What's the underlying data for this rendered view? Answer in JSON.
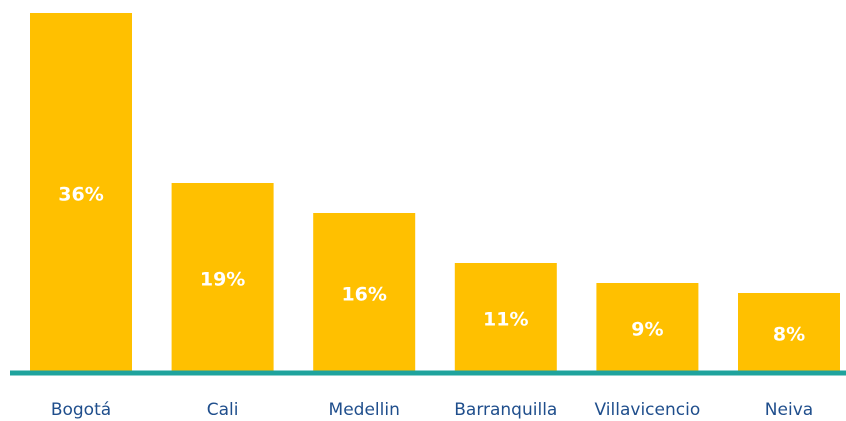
{
  "chart_data": {
    "type": "bar",
    "categories": [
      "Bogotá",
      "Cali",
      "Medellin",
      "Barranquilla",
      "Villavicencio",
      "Neiva"
    ],
    "values": [
      36,
      19,
      16,
      11,
      9,
      8
    ],
    "value_labels": [
      "36%",
      "19%",
      "16%",
      "11%",
      "9%",
      "8%"
    ],
    "color": "#ffc000"
  }
}
